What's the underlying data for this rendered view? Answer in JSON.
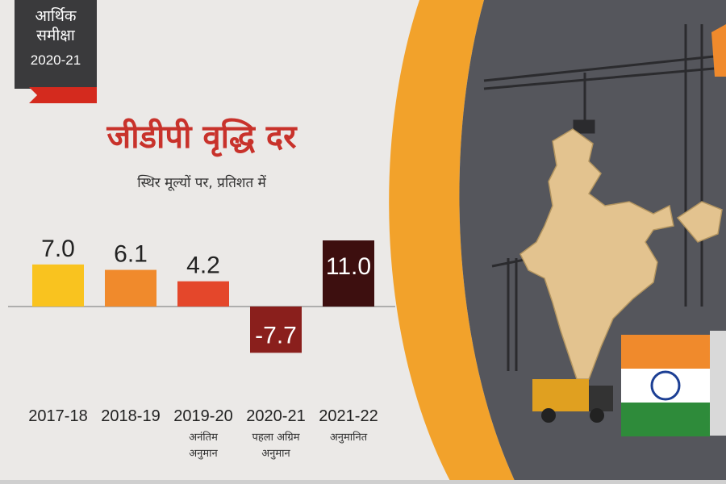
{
  "badge": {
    "line1": "आर्थिक",
    "line2": "समीक्षा",
    "line3": "2020-21"
  },
  "chart_data": {
    "type": "bar",
    "title": "जीडीपी वृद्धि दर",
    "subtitle": "स्थिर मूल्यों पर, प्रतिशत में",
    "categories": [
      "2017-18",
      "2018-19",
      "2019-20",
      "2020-21",
      "2021-22"
    ],
    "category_notes": [
      [],
      [],
      [
        "अनंतिम",
        "अनुमान"
      ],
      [
        "पहला अग्रिम",
        "अनुमान"
      ],
      [
        "अनुमानित"
      ]
    ],
    "values": [
      7.0,
      6.1,
      4.2,
      -7.7,
      11.0
    ],
    "value_labels": [
      "7.0",
      "6.1",
      "4.2",
      "-7.7",
      "11.0"
    ],
    "colors": [
      "#f9c31f",
      "#f08a2c",
      "#e4472b",
      "#8a1f1c",
      "#3d0f0f"
    ],
    "ylim": [
      -8.6,
      12.4
    ],
    "grid": false
  },
  "colors": {
    "title": "#c8322b",
    "accent": "#f2a22b"
  }
}
